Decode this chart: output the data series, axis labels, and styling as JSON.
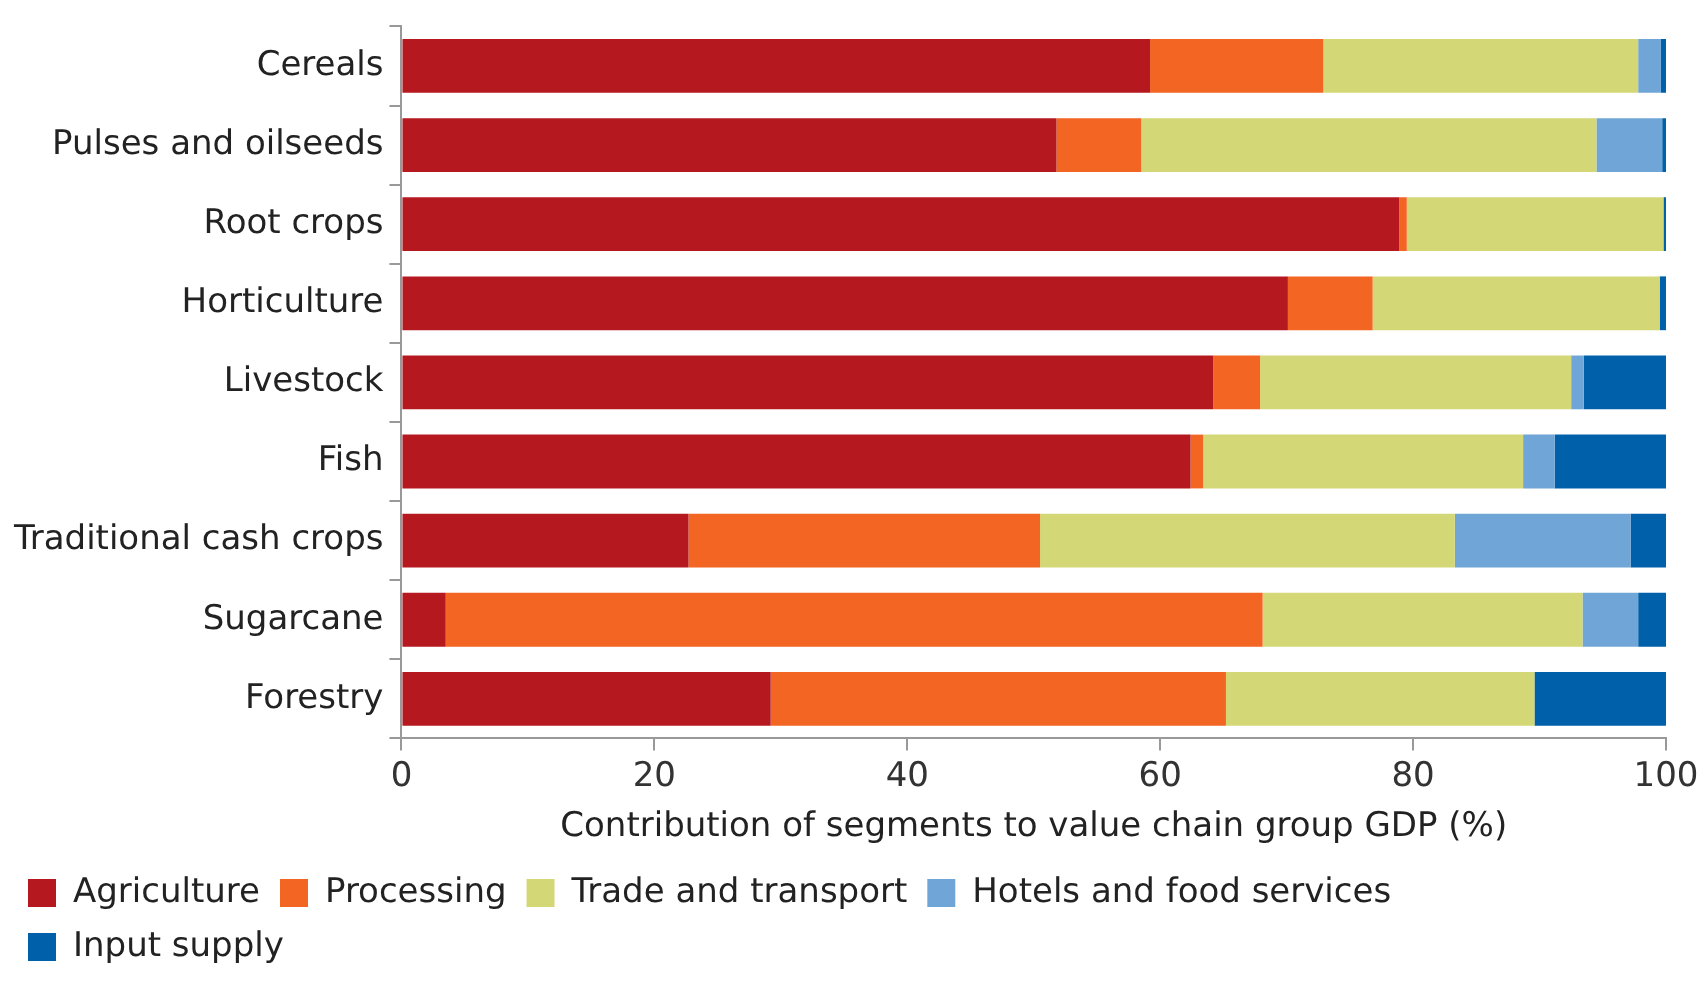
{
  "chart_data": {
    "type": "bar",
    "orientation": "horizontal",
    "stacked": true,
    "categories": [
      "Cereals",
      "Pulses and oilseeds",
      "Root crops",
      "Horticulture",
      "Livestock",
      "Fish",
      "Traditional cash crops",
      "Sugarcane",
      "Forestry"
    ],
    "series": [
      {
        "name": "Agriculture",
        "color": "#b5191f",
        "values": [
          59.2,
          51.8,
          78.9,
          70.1,
          64.2,
          62.4,
          22.7,
          3.5,
          29.2
        ]
      },
      {
        "name": "Processing",
        "color": "#f26522",
        "values": [
          13.7,
          6.7,
          0.6,
          6.7,
          3.7,
          1.0,
          27.8,
          64.6,
          36.0
        ]
      },
      {
        "name": "Trade and transport",
        "color": "#d4d776",
        "values": [
          24.9,
          36.0,
          20.3,
          22.7,
          24.6,
          25.3,
          32.8,
          25.3,
          24.4
        ]
      },
      {
        "name": "Hotels and food services",
        "color": "#6fa6d7",
        "values": [
          1.8,
          5.2,
          0,
          0,
          1.0,
          2.5,
          13.9,
          4.4,
          0
        ]
      },
      {
        "name": "Input supply",
        "color": "#0060a9",
        "values": [
          0.4,
          0.3,
          0.2,
          0.5,
          6.5,
          8.8,
          2.8,
          2.2,
          10.4
        ]
      }
    ],
    "xlim": [
      0,
      100
    ],
    "xticks": [
      0,
      20,
      40,
      60,
      80,
      100
    ],
    "xlabel": "Contribution of segments to value chain group GDP (%)",
    "grid": false,
    "legend": "bottom"
  }
}
